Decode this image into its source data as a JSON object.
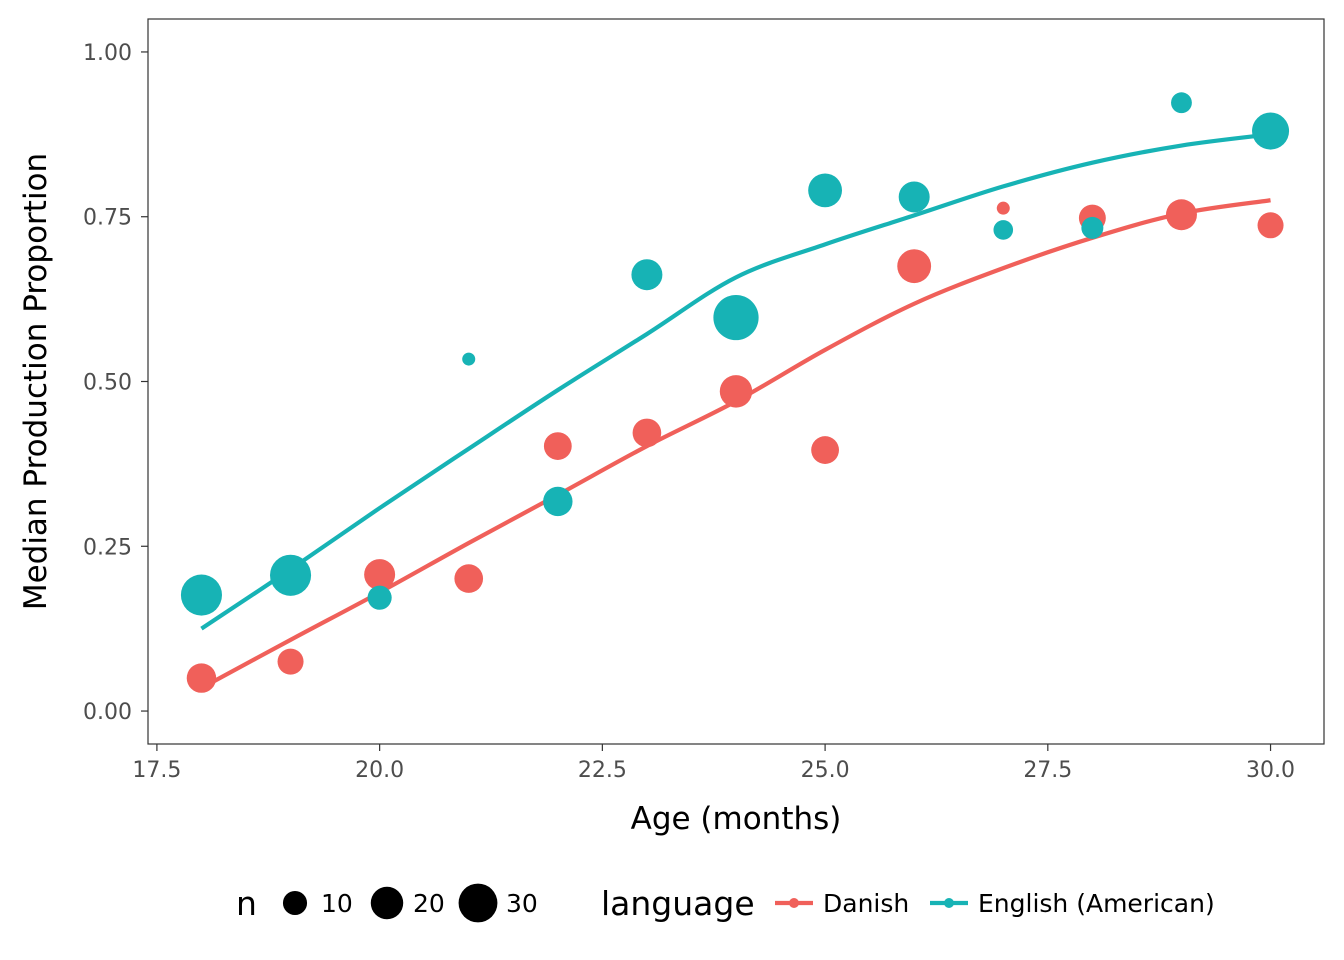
{
  "colors": {
    "Danish": "#F0605A",
    "English (American)": "#17B3B5"
  },
  "chart_data": {
    "type": "scatter",
    "xlabel": "Age (months)",
    "ylabel": "Median Production Proportion",
    "xlim": [
      17.4,
      30.6
    ],
    "ylim": [
      -0.05,
      1.05
    ],
    "x_ticks": [
      "17.5",
      "20.0",
      "22.5",
      "25.0",
      "27.5",
      "30.0"
    ],
    "x_tick_values": [
      17.5,
      20.0,
      22.5,
      25.0,
      27.5,
      30.0
    ],
    "y_ticks": [
      "0.00",
      "0.25",
      "0.50",
      "0.75",
      "1.00"
    ],
    "y_tick_values": [
      0.0,
      0.25,
      0.5,
      0.75,
      1.0
    ],
    "grid": false,
    "legend_position": "bottom",
    "size_legend": {
      "title": "n",
      "values": [
        10,
        20,
        30
      ],
      "labels": [
        "10",
        "20",
        "30"
      ]
    },
    "color_legend": {
      "title": "language",
      "labels": [
        "Danish",
        "English (American)"
      ]
    },
    "series": [
      {
        "name": "Danish",
        "points": [
          {
            "x": 18,
            "y": 0.05,
            "n": 16
          },
          {
            "x": 19,
            "y": 0.075,
            "n": 12
          },
          {
            "x": 20,
            "y": 0.207,
            "n": 18
          },
          {
            "x": 21,
            "y": 0.201,
            "n": 15
          },
          {
            "x": 22,
            "y": 0.402,
            "n": 14
          },
          {
            "x": 23,
            "y": 0.422,
            "n": 15
          },
          {
            "x": 24,
            "y": 0.485,
            "n": 20
          },
          {
            "x": 25,
            "y": 0.396,
            "n": 14
          },
          {
            "x": 26,
            "y": 0.675,
            "n": 22
          },
          {
            "x": 27,
            "y": 0.763,
            "n": 2
          },
          {
            "x": 28,
            "y": 0.748,
            "n": 13
          },
          {
            "x": 29,
            "y": 0.753,
            "n": 18
          },
          {
            "x": 30,
            "y": 0.737,
            "n": 12
          }
        ],
        "smooth": [
          {
            "x": 18,
            "y": 0.035
          },
          {
            "x": 19,
            "y": 0.108
          },
          {
            "x": 20,
            "y": 0.18
          },
          {
            "x": 21,
            "y": 0.255
          },
          {
            "x": 22,
            "y": 0.328
          },
          {
            "x": 23,
            "y": 0.402
          },
          {
            "x": 24,
            "y": 0.47
          },
          {
            "x": 25,
            "y": 0.548
          },
          {
            "x": 26,
            "y": 0.618
          },
          {
            "x": 27,
            "y": 0.672
          },
          {
            "x": 28,
            "y": 0.718
          },
          {
            "x": 29,
            "y": 0.755
          },
          {
            "x": 30,
            "y": 0.775
          }
        ]
      },
      {
        "name": "English (American)",
        "points": [
          {
            "x": 18,
            "y": 0.176,
            "n": 34
          },
          {
            "x": 19,
            "y": 0.206,
            "n": 34
          },
          {
            "x": 20,
            "y": 0.172,
            "n": 10
          },
          {
            "x": 21,
            "y": 0.534,
            "n": 2
          },
          {
            "x": 22,
            "y": 0.318,
            "n": 16
          },
          {
            "x": 23,
            "y": 0.662,
            "n": 18
          },
          {
            "x": 24,
            "y": 0.597,
            "n": 42
          },
          {
            "x": 25,
            "y": 0.79,
            "n": 22
          },
          {
            "x": 26,
            "y": 0.78,
            "n": 18
          },
          {
            "x": 27,
            "y": 0.73,
            "n": 6
          },
          {
            "x": 28,
            "y": 0.733,
            "n": 8
          },
          {
            "x": 29,
            "y": 0.923,
            "n": 7
          },
          {
            "x": 30,
            "y": 0.88,
            "n": 27
          }
        ],
        "smooth": [
          {
            "x": 18,
            "y": 0.125
          },
          {
            "x": 19,
            "y": 0.215
          },
          {
            "x": 20,
            "y": 0.308
          },
          {
            "x": 21,
            "y": 0.398
          },
          {
            "x": 22,
            "y": 0.487
          },
          {
            "x": 23,
            "y": 0.572
          },
          {
            "x": 24,
            "y": 0.658
          },
          {
            "x": 25,
            "y": 0.708
          },
          {
            "x": 26,
            "y": 0.752
          },
          {
            "x": 27,
            "y": 0.796
          },
          {
            "x": 28,
            "y": 0.832
          },
          {
            "x": 29,
            "y": 0.858
          },
          {
            "x": 30,
            "y": 0.875
          }
        ]
      }
    ]
  }
}
